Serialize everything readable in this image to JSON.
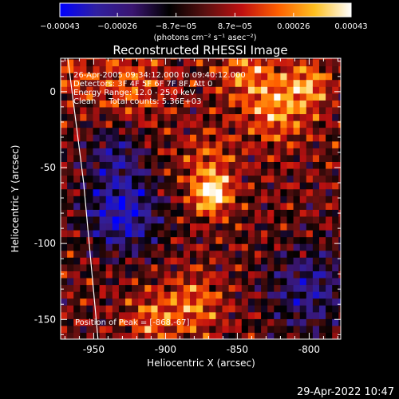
{
  "chart_data": {
    "type": "heatmap",
    "title": "Reconstructed RHESSI Image",
    "xlabel": "Heliocentric X (arcsec)",
    "ylabel": "Heliocentric Y (arcsec)",
    "xlim": [
      -973,
      -778
    ],
    "ylim": [
      -163,
      22
    ],
    "xticks": [
      -950,
      -900,
      -850,
      -800
    ],
    "yticks": [
      0,
      -50,
      -100,
      -150
    ],
    "colorbar": {
      "min": -0.00043,
      "max": 0.00043,
      "ticks": [
        {
          "value": -0.00043,
          "label": "−0.00043"
        },
        {
          "value": -0.00026,
          "label": "−0.00026"
        },
        {
          "value": -8.7e-05,
          "label": "−8.7e−05"
        },
        {
          "value": 8.7e-05,
          "label": "8.7e−05"
        },
        {
          "value": 0.00026,
          "label": "0.00026"
        },
        {
          "value": 0.00043,
          "label": "0.00043"
        }
      ],
      "unit_label": "(photons cm⁻² s⁻¹ asec⁻²)",
      "colormap": [
        "#0000ff",
        "#3020a0",
        "#3a1570",
        "#000000",
        "#5a1010",
        "#c01010",
        "#ff6000",
        "#ffc020",
        "#ffffff"
      ]
    },
    "annotations": [
      "26-Apr-2005 09:34:12.000 to 09:40:12.000",
      "Detectors: 3F 4F 5F 6F 7F 8F, Att 0",
      "Energy Range: 12.0 - 25.0 keV",
      "Clean     Total counts: 5.36E+03"
    ],
    "peak_label": "Position of Peak = [-868,-67]",
    "peak": {
      "x": -868,
      "y": -67
    },
    "limb_line": [
      {
        "x": -968,
        "y": 22
      },
      {
        "x": -957,
        "y": -60
      },
      {
        "x": -947,
        "y": -163
      }
    ],
    "sources": [
      {
        "x": -868,
        "y": -67,
        "amp": 1.0,
        "sigma": 9
      },
      {
        "x": -870,
        "y": -45,
        "amp": 0.35,
        "sigma": 14
      },
      {
        "x": -822,
        "y": -10,
        "amp": 0.6,
        "sigma": 16
      },
      {
        "x": -800,
        "y": 5,
        "amp": 0.55,
        "sigma": 10
      },
      {
        "x": -845,
        "y": 15,
        "amp": 0.45,
        "sigma": 14
      },
      {
        "x": -930,
        "y": -80,
        "amp": -0.85,
        "sigma": 18
      },
      {
        "x": -935,
        "y": -40,
        "amp": -0.5,
        "sigma": 14
      },
      {
        "x": -800,
        "y": -130,
        "amp": -0.6,
        "sigma": 20
      },
      {
        "x": -880,
        "y": -140,
        "amp": 0.5,
        "sigma": 14
      },
      {
        "x": -910,
        "y": -150,
        "amp": 0.45,
        "sigma": 12
      },
      {
        "x": -925,
        "y": 5,
        "amp": 0.4,
        "sigma": 18
      },
      {
        "x": -965,
        "y": 10,
        "amp": 0.3,
        "sigma": 10
      }
    ]
  },
  "footer": {
    "timestamp": "29-Apr-2022 10:47"
  }
}
